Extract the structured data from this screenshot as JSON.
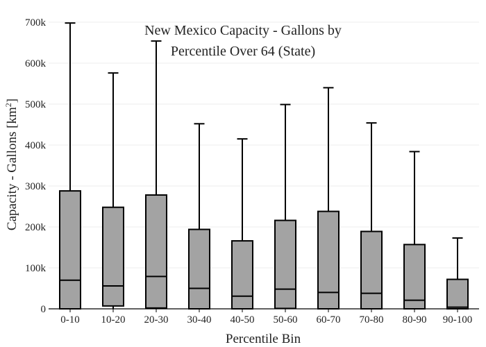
{
  "chart_data": {
    "type": "box",
    "title_lines": [
      "New Mexico Capacity - Gallons by",
      "Percentile Over 64 (State)"
    ],
    "xlabel": "Percentile Bin",
    "ylabel_main": "Capacity - Gallons  [km",
    "ylabel_sup": "2",
    "ylabel_close": "]",
    "ylim": [
      0,
      700000
    ],
    "yticks": [
      {
        "value": 0,
        "label": "0"
      },
      {
        "value": 100000,
        "label": "100k"
      },
      {
        "value": 200000,
        "label": "200k"
      },
      {
        "value": 300000,
        "label": "300k"
      },
      {
        "value": 400000,
        "label": "400k"
      },
      {
        "value": 500000,
        "label": "500k"
      },
      {
        "value": 600000,
        "label": "600k"
      },
      {
        "value": 700000,
        "label": "700k"
      }
    ],
    "grid": true,
    "colors": {
      "box_fill": "#a3a3a3",
      "stroke": "#000000",
      "grid": "#eeeeee"
    },
    "categories": [
      "0-10",
      "10-20",
      "20-30",
      "30-40",
      "40-50",
      "50-60",
      "60-70",
      "70-80",
      "80-90",
      "90-100"
    ],
    "boxes": [
      {
        "min": 0,
        "q1": 0,
        "median": 70000,
        "q3": 288000,
        "max": 698000
      },
      {
        "min": 0,
        "q1": 7000,
        "median": 56000,
        "q3": 248000,
        "max": 576000
      },
      {
        "min": 0,
        "q1": 2000,
        "median": 79000,
        "q3": 278000,
        "max": 654000
      },
      {
        "min": 0,
        "q1": 0,
        "median": 50000,
        "q3": 194000,
        "max": 452000
      },
      {
        "min": 0,
        "q1": 0,
        "median": 31000,
        "q3": 166000,
        "max": 415000
      },
      {
        "min": 0,
        "q1": 1000,
        "median": 48000,
        "q3": 216000,
        "max": 499000
      },
      {
        "min": 0,
        "q1": 0,
        "median": 40000,
        "q3": 238000,
        "max": 540000
      },
      {
        "min": 0,
        "q1": 0,
        "median": 38000,
        "q3": 189000,
        "max": 454000
      },
      {
        "min": 0,
        "q1": 0,
        "median": 21000,
        "q3": 157000,
        "max": 384000
      },
      {
        "min": 0,
        "q1": 0,
        "median": 4000,
        "q3": 72000,
        "max": 173000
      }
    ]
  }
}
